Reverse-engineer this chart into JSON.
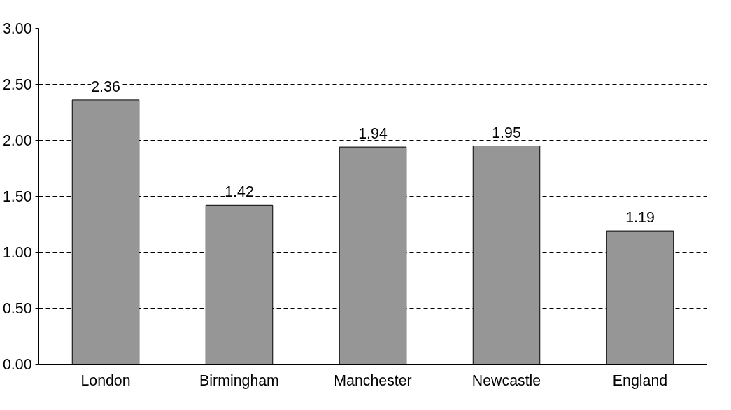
{
  "chart_data": {
    "type": "bar",
    "categories": [
      "London",
      "Birmingham",
      "Manchester",
      "Newcastle",
      "England"
    ],
    "values": [
      2.36,
      1.42,
      1.94,
      1.95,
      1.19
    ],
    "color": "#969696",
    "ylim": [
      0,
      3
    ],
    "yticks": [
      {
        "value": 0,
        "label": "0.00"
      },
      {
        "value": 0.5,
        "label": "0.50"
      },
      {
        "value": 1,
        "label": "1.00"
      },
      {
        "value": 1.5,
        "label": "1.50"
      },
      {
        "value": 2,
        "label": "2.00"
      },
      {
        "value": 2.5,
        "label": "2.50"
      },
      {
        "value": 3,
        "label": "3.00"
      }
    ],
    "grid": "y",
    "data_labels": true
  }
}
